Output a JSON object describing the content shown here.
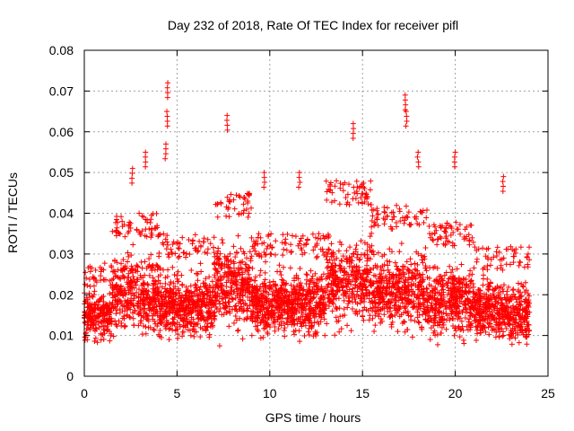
{
  "chart_data": {
    "type": "scatter",
    "title": "Day 232 of 2018, Rate Of TEC Index for receiver pifl",
    "xlabel": "GPS time / hours",
    "ylabel": "ROTI / TECUs",
    "xlim": [
      0,
      25
    ],
    "ylim": [
      0,
      0.08
    ],
    "xticks": [
      0,
      5,
      10,
      15,
      20,
      25
    ],
    "xtick_labels": [
      "0",
      "5",
      "10",
      "15",
      "20",
      "25"
    ],
    "yticks": [
      0,
      0.01,
      0.02,
      0.03,
      0.04,
      0.05,
      0.06,
      0.07,
      0.08
    ],
    "ytick_labels": [
      "0",
      "0.01",
      "0.02",
      "0.03",
      "0.04",
      "0.05",
      "0.06",
      "0.07",
      "0.08"
    ],
    "grid": true,
    "marker": "+",
    "color": "#ff0000",
    "x_range_of_data": [
      0,
      24
    ],
    "notable_peaks": [
      {
        "x": 4.5,
        "y": 0.072
      },
      {
        "x": 4.45,
        "y": 0.065
      },
      {
        "x": 7.7,
        "y": 0.064
      },
      {
        "x": 14.5,
        "y": 0.062
      },
      {
        "x": 17.3,
        "y": 0.069
      },
      {
        "x": 17.35,
        "y": 0.065
      },
      {
        "x": 4.4,
        "y": 0.057
      },
      {
        "x": 20.0,
        "y": 0.055
      },
      {
        "x": 3.3,
        "y": 0.055
      },
      {
        "x": 2.6,
        "y": 0.051
      },
      {
        "x": 11.6,
        "y": 0.05
      },
      {
        "x": 9.7,
        "y": 0.05
      },
      {
        "x": 22.6,
        "y": 0.049
      },
      {
        "x": 18.0,
        "y": 0.055
      }
    ],
    "density_profile": [
      {
        "x_start": 0,
        "x_end": 1.5,
        "y_low": 0.008,
        "y_high": 0.028
      },
      {
        "x_start": 1.5,
        "y_low": 0.008,
        "x_end": 4,
        "y_high": 0.04
      },
      {
        "x_start": 4,
        "x_end": 7,
        "y_low": 0.006,
        "y_high": 0.035
      },
      {
        "x_start": 7,
        "x_end": 9,
        "y_low": 0.008,
        "y_high": 0.045
      },
      {
        "x_start": 9,
        "x_end": 13,
        "y_low": 0.007,
        "y_high": 0.035
      },
      {
        "x_start": 13,
        "x_end": 15.5,
        "y_low": 0.008,
        "y_high": 0.048
      },
      {
        "x_start": 15.5,
        "x_end": 18.5,
        "y_low": 0.008,
        "y_high": 0.042
      },
      {
        "x_start": 18.5,
        "x_end": 21,
        "y_low": 0.006,
        "y_high": 0.038
      },
      {
        "x_start": 21,
        "x_end": 24,
        "y_low": 0.006,
        "y_high": 0.032
      }
    ]
  }
}
